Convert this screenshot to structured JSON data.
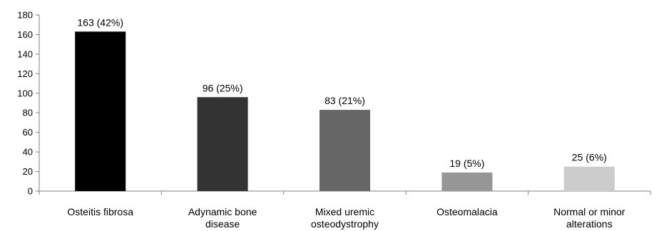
{
  "chart_data": {
    "type": "bar",
    "title": "",
    "xlabel": "",
    "ylabel": "",
    "ylim": [
      0,
      180
    ],
    "yticks": [
      0,
      20,
      40,
      60,
      80,
      100,
      120,
      140,
      160,
      180
    ],
    "grid": false,
    "legend": "none",
    "categories": [
      [
        "Osteitis fibrosa"
      ],
      [
        "Adynamic bone",
        "disease"
      ],
      [
        "Mixed uremic",
        "osteodystrophy"
      ],
      [
        "Osteomalacia"
      ],
      [
        "Normal or minor",
        "alterations"
      ]
    ],
    "values": [
      163,
      96,
      83,
      19,
      25
    ],
    "data_labels": [
      "163 (42%)",
      "96 (25%)",
      "83 (21%)",
      "19 (5%)",
      "25 (6%)"
    ],
    "colors": [
      "#000000",
      "#333333",
      "#666666",
      "#969696",
      "#cccccc"
    ]
  }
}
